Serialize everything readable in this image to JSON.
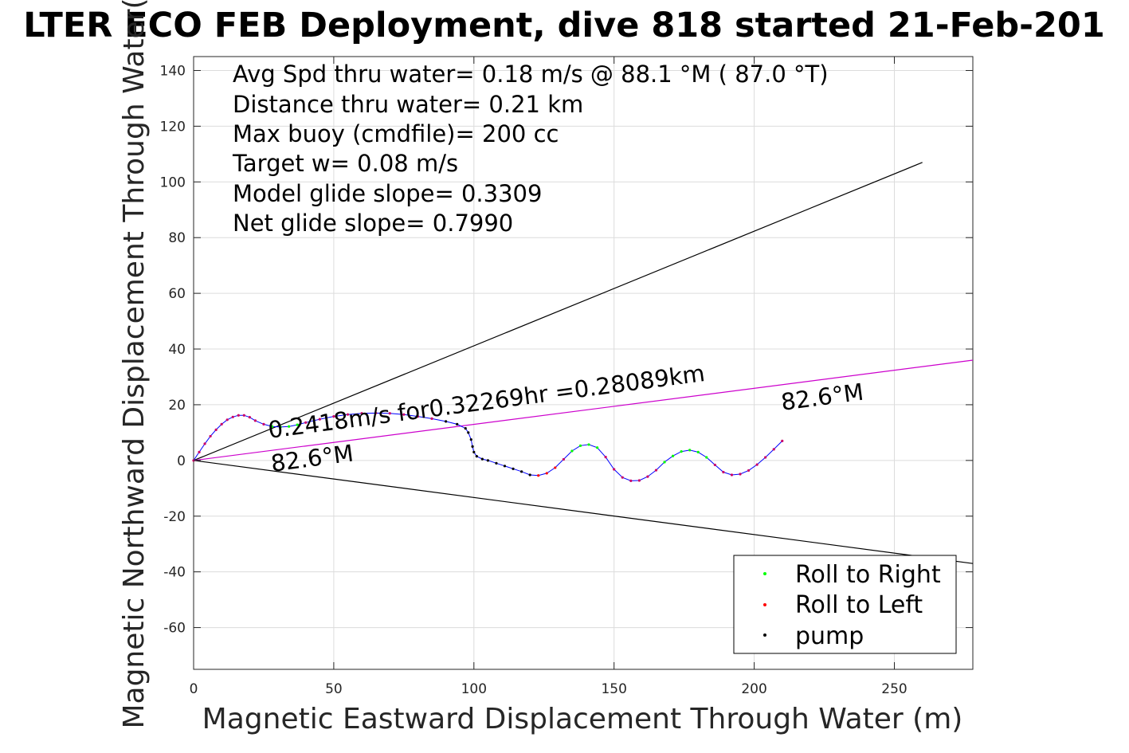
{
  "chart_data": {
    "type": "scatter",
    "title": "LTER ECO FEB Deployment, dive 818 started 21-Feb-201",
    "xlabel": "Magnetic Eastward Displacement Through Water (m)",
    "ylabel": "Magnetic Northward Displacement Through Water(",
    "xlim": [
      0,
      278
    ],
    "ylim": [
      -75,
      145
    ],
    "xticks": [
      0,
      50,
      100,
      150,
      200,
      250
    ],
    "yticks": [
      -60,
      -40,
      -20,
      0,
      20,
      40,
      60,
      80,
      100,
      120,
      140
    ],
    "grid": true,
    "legend_position": "bottom-right",
    "stats_text": [
      "Avg Spd thru water=  0.18 m/s @  88.1 °M ( 87.0 °T)",
      "Distance thru water=  0.21 km",
      "Max buoy (cmdfile)= 200 cc",
      "Target w= 0.08 m/s",
      "Model glide slope= 0.3309",
      "Net glide slope= 0.7990"
    ],
    "annotations": [
      {
        "text": "0.2418m/s for0.32269hr =0.28089km",
        "x": 27,
        "y": 8,
        "angle": 7.5
      },
      {
        "text": "82.6°M",
        "x": 28,
        "y": -4,
        "angle": 7.5
      },
      {
        "text": "82.6°M",
        "x": 210,
        "y": 18,
        "angle": 7.5
      }
    ],
    "lines": [
      {
        "name": "upper-bound",
        "color": "#000000",
        "x": [
          0,
          260
        ],
        "y": [
          0,
          107
        ]
      },
      {
        "name": "lower-bound",
        "color": "#000000",
        "x": [
          0,
          278
        ],
        "y": [
          0,
          -37
        ]
      },
      {
        "name": "heading",
        "color": "#cc00cc",
        "x": [
          0,
          278
        ],
        "y": [
          0,
          36
        ]
      }
    ],
    "track": {
      "color": "#0000ff",
      "x": [
        0,
        2,
        4,
        6,
        8,
        10,
        12,
        14,
        16,
        18,
        20,
        22,
        25,
        28,
        31,
        34,
        37,
        40,
        45,
        50,
        55,
        60,
        65,
        70,
        75,
        80,
        85,
        90,
        94,
        97,
        98,
        99,
        99.5,
        100,
        101,
        103,
        105,
        108,
        111,
        114,
        117,
        120,
        123,
        126,
        129,
        132,
        135,
        138,
        141,
        144,
        147,
        150,
        153,
        156,
        159,
        162,
        165,
        168,
        171,
        174,
        177,
        180,
        183,
        186,
        189,
        192,
        195,
        198,
        201,
        204,
        207,
        210
      ],
      "y": [
        0,
        3,
        6,
        8.7,
        11,
        13,
        14.6,
        15.6,
        16.2,
        16.2,
        15.5,
        14.3,
        13,
        12.2,
        12,
        12.2,
        12.8,
        13.6,
        14.8,
        15.8,
        16.5,
        16.9,
        17,
        16.9,
        16.5,
        15.8,
        15,
        14,
        13,
        11.5,
        10,
        7.5,
        5,
        3,
        1.5,
        0.5,
        0,
        -1,
        -2,
        -3,
        -4,
        -5.2,
        -5.4,
        -4.6,
        -2.6,
        0.4,
        3.4,
        5.3,
        5.7,
        4.6,
        1.2,
        -3.2,
        -6.1,
        -7.3,
        -7.2,
        -5.8,
        -3.5,
        -0.6,
        1.6,
        3.2,
        3.7,
        3,
        1.1,
        -1.6,
        -4.2,
        -5.2,
        -4.9,
        -3.6,
        -1.5,
        1.1,
        4,
        7
      ]
    },
    "legend": [
      {
        "label": "Roll to Right",
        "color": "#00ff00"
      },
      {
        "label": "Roll to Left",
        "color": "#ff0000"
      },
      {
        "label": "pump",
        "color": "#000000"
      }
    ]
  }
}
